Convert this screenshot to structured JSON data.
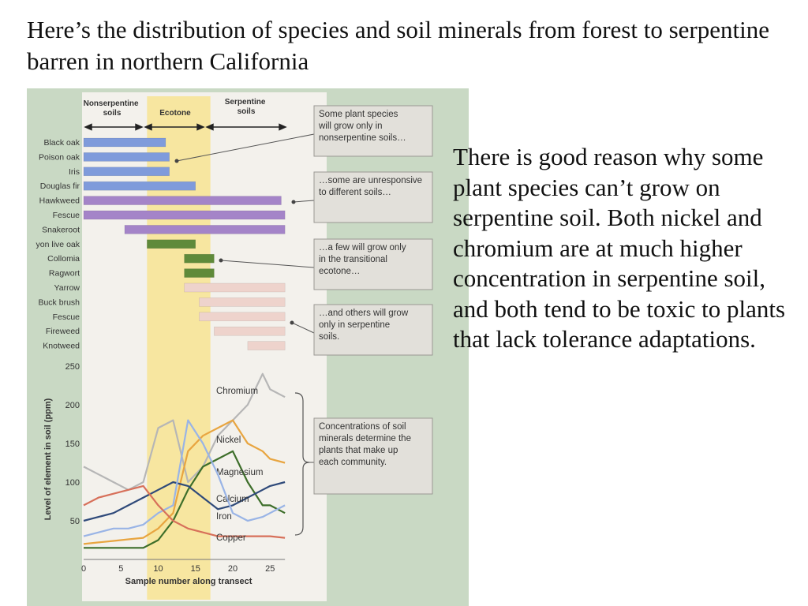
{
  "slide": {
    "title": "Here’s the distribution of species and soil minerals from forest to serpentine barren in northern California",
    "body": "There is good reason why some plant species can’t grow on serpentine soil. Both nickel and chromium are at much higher concentration in serpentine soil, and both tend to be toxic to plants that lack tolerance adaptations."
  },
  "colors": {
    "figure_bg": "#c9d9c4",
    "panel_bg": "#f3f1ec",
    "ecotone": "#f7e6a0",
    "nonserpentine": "#7f9bdb",
    "generalist": "#a484c8",
    "ecotone_species": "#5f8a3a",
    "serpentine": "#eed3cc",
    "callout_bg": "#e2e0da"
  },
  "zones": {
    "nonserpentine": "Nonserpentine soils",
    "ecotone": "Ecotone",
    "serpentine": "Serpentine soils"
  },
  "callouts": [
    "Some plant species will grow only in nonserpentine soils…",
    "…some are unresponsive to different soils…",
    "…a few will grow only in the transitional ecotone…",
    "…and others will grow only in serpentine soils.",
    "Concentrations of soil minerals determine the plants that make up each community."
  ],
  "chart_data": [
    {
      "type": "range-bar",
      "x_scale_ref": "Sample number along transect",
      "categories": [
        "Black oak",
        "Poison oak",
        "Iris",
        "Douglas fir",
        "Hawkweed",
        "Fescue",
        "Snakeroot",
        "yon live oak",
        "Collomia",
        "Ragwort",
        "Yarrow",
        "Buck brush",
        "Fescue",
        "Fireweed",
        "Knotweed"
      ],
      "ranges": [
        [
          0,
          11
        ],
        [
          0,
          11.5
        ],
        [
          0,
          11.5
        ],
        [
          0,
          15
        ],
        [
          0,
          26.5
        ],
        [
          0,
          27
        ],
        [
          5.5,
          27
        ],
        [
          8.5,
          15
        ],
        [
          13.5,
          17.5
        ],
        [
          13.5,
          17.5
        ],
        [
          13.5,
          27
        ],
        [
          15.5,
          27
        ],
        [
          15.5,
          27
        ],
        [
          17.5,
          27
        ],
        [
          22,
          27
        ]
      ],
      "groups": [
        "nonserpentine",
        "nonserpentine",
        "nonserpentine",
        "nonserpentine",
        "generalist",
        "generalist",
        "generalist",
        "ecotone_species",
        "ecotone_species",
        "ecotone_species",
        "serpentine",
        "serpentine",
        "serpentine",
        "serpentine",
        "serpentine"
      ],
      "ecotone_range": [
        8.5,
        17
      ]
    },
    {
      "type": "line",
      "xlabel": "Sample number along transect",
      "ylabel": "Level of element in soil (ppm)",
      "xlim": [
        0,
        27
      ],
      "ylim": [
        0,
        250
      ],
      "xticks": [
        "0",
        "5",
        "10",
        "15",
        "20",
        "25"
      ],
      "yticks": [
        "50",
        "100",
        "150",
        "200",
        "250"
      ],
      "grid": false,
      "series": [
        {
          "name": "Chromium",
          "color": "#b6b6b6",
          "x": [
            0,
            2,
            4,
            6,
            8,
            10,
            12,
            14,
            16,
            18,
            20,
            22,
            24,
            25,
            27
          ],
          "y": [
            120,
            110,
            100,
            90,
            100,
            170,
            180,
            100,
            120,
            160,
            180,
            200,
            240,
            220,
            210
          ]
        },
        {
          "name": "Nickel",
          "color": "#e8a540",
          "x": [
            0,
            2,
            4,
            6,
            8,
            10,
            12,
            14,
            16,
            18,
            20,
            22,
            24,
            25,
            27
          ],
          "y": [
            20,
            22,
            24,
            26,
            28,
            40,
            60,
            140,
            160,
            170,
            180,
            150,
            140,
            130,
            125
          ]
        },
        {
          "name": "Magnesium",
          "color": "#3d6e2a",
          "x": [
            0,
            2,
            4,
            6,
            8,
            10,
            12,
            14,
            16,
            18,
            20,
            22,
            24,
            25,
            27
          ],
          "y": [
            15,
            15,
            15,
            15,
            15,
            25,
            50,
            90,
            120,
            130,
            140,
            100,
            70,
            70,
            60
          ]
        },
        {
          "name": "Calcium",
          "color": "#2f4a7a",
          "x": [
            0,
            2,
            4,
            6,
            8,
            10,
            12,
            14,
            16,
            18,
            20,
            22,
            24,
            25,
            27
          ],
          "y": [
            50,
            55,
            60,
            70,
            80,
            90,
            100,
            95,
            80,
            65,
            70,
            80,
            90,
            95,
            100
          ]
        },
        {
          "name": "Iron",
          "color": "#99b4e6",
          "x": [
            0,
            2,
            4,
            6,
            8,
            10,
            12,
            14,
            16,
            18,
            20,
            22,
            24,
            25,
            27
          ],
          "y": [
            30,
            35,
            40,
            40,
            45,
            60,
            70,
            180,
            150,
            110,
            60,
            50,
            55,
            60,
            70
          ]
        },
        {
          "name": "Copper",
          "color": "#d7705a",
          "x": [
            0,
            2,
            4,
            6,
            8,
            10,
            12,
            14,
            16,
            18,
            20,
            22,
            24,
            25,
            27
          ],
          "y": [
            70,
            80,
            85,
            90,
            95,
            70,
            50,
            40,
            35,
            30,
            30,
            30,
            30,
            30,
            28
          ]
        }
      ]
    }
  ]
}
